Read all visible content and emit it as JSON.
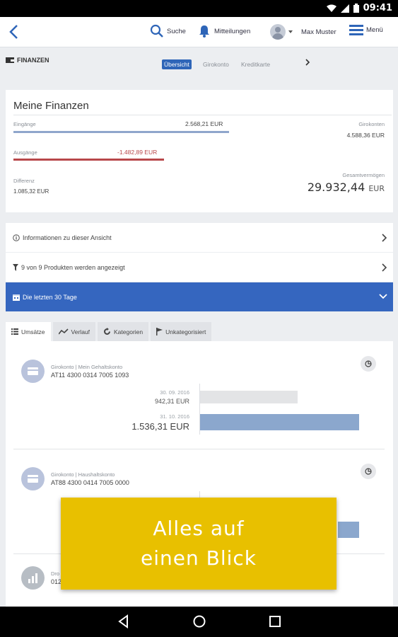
{
  "status_bar": {
    "time": "09:41"
  },
  "header": {
    "search_label": "Suche",
    "messages_label": "Mitteilungen",
    "user_name": "Max Muster",
    "menu_label": "Menü"
  },
  "section": {
    "title": "FINANZEN",
    "tabs": [
      "Übersicht",
      "Girokonto",
      "Kreditkarte"
    ],
    "active_tab": "Übersicht"
  },
  "finances": {
    "title": "Meine Finanzen",
    "income_label": "Eingänge",
    "income_value": "2.568,21 EUR",
    "expenses_label": "Ausgänge",
    "expenses_value": "-1.482,89 EUR",
    "difference_label": "Differenz",
    "difference_value": "1.085,32 EUR",
    "checking_label": "Girokonten",
    "checking_value": "4.588,36 EUR",
    "total_label": "Gesamtvermögen",
    "total_value": "29.932,44",
    "total_currency": "EUR",
    "colors": {
      "income_bar": "#8fa6cc",
      "expenses_bar": "#b8474a"
    }
  },
  "rows": {
    "info": "Informationen zu dieser Ansicht",
    "filter": "9 von 9 Produkten werden angezeigt",
    "period": "Die letzten 30 Tage"
  },
  "view_tabs": {
    "turnover": "Umsätze",
    "history": "Verlauf",
    "categories": "Kategorien",
    "uncategorized": "Unkategorisiert"
  },
  "accounts": [
    {
      "name": "Girokonto | Mein Gehaltskonto",
      "iban": "AT11 4300 0314 7005 1093",
      "entries": [
        {
          "date": "30. 09. 2016",
          "amount": "942,31 EUR",
          "value": 942.31
        },
        {
          "date": "31. 10. 2016",
          "amount": "1.536,31 EUR",
          "value": 1536.31
        }
      ]
    },
    {
      "name": "Girokonto | Haushaltskonto",
      "iban": "AT88 4300 0414 7005 0000"
    },
    {
      "name": "Dro",
      "iban": "012"
    }
  ],
  "promo": {
    "line1": "Alles auf",
    "line2": "einen Blick"
  },
  "colors": {
    "primary": "#3566bf",
    "promo": "#e8c000",
    "bar_current": "#8ba7cd",
    "bar_previous": "#e3e4e6"
  }
}
